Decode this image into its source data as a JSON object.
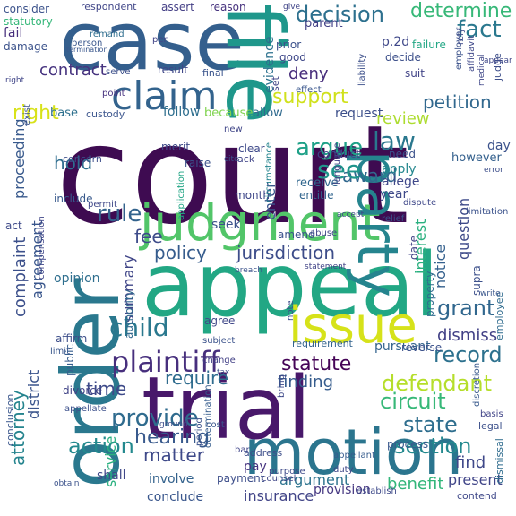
{
  "words": [
    {
      "text": "court",
      "color": "#3e0b51"
    },
    {
      "text": "case",
      "color": "#345f8d"
    },
    {
      "text": "file",
      "color": "#1f978b"
    },
    {
      "text": "appeal",
      "color": "#22a784"
    },
    {
      "text": "order",
      "color": "#2a788e"
    },
    {
      "text": "trial",
      "color": "#48186a"
    },
    {
      "text": "motion",
      "color": "#2b758e"
    },
    {
      "text": "judgment",
      "color": "#52c569"
    },
    {
      "text": "party",
      "color": "#25848e"
    },
    {
      "text": "issue",
      "color": "#d6e21a"
    },
    {
      "text": "claim",
      "color": "#33638d"
    },
    {
      "text": "plaintiff",
      "color": "#472f7d"
    },
    {
      "text": "decision",
      "color": "#2d708e"
    },
    {
      "text": "determine",
      "color": "#37b878"
    },
    {
      "text": "fact",
      "color": "#2a788e"
    },
    {
      "text": "contract",
      "color": "#46337f"
    },
    {
      "text": "right",
      "color": "#d8e219"
    },
    {
      "text": "support",
      "color": "#d0e11c"
    },
    {
      "text": "petition",
      "color": "#31688e"
    },
    {
      "text": "deny",
      "color": "#472d7b"
    },
    {
      "text": "p.2d",
      "color": "#3f4889"
    },
    {
      "text": "evidence",
      "color": "#2c718e"
    },
    {
      "text": "prior",
      "color": "#3b518b"
    },
    {
      "text": "parent",
      "color": "#424086"
    },
    {
      "text": "consider",
      "color": "#3b528b"
    },
    {
      "text": "respondent",
      "color": "#404688"
    },
    {
      "text": "assert",
      "color": "#433e85"
    },
    {
      "text": "reason",
      "color": "#46327e"
    },
    {
      "text": "fail",
      "color": "#472e7c"
    },
    {
      "text": "statutory",
      "color": "#35b779"
    },
    {
      "text": "damage",
      "color": "#3b528b"
    },
    {
      "text": "remand",
      "color": "#2e6d8e"
    },
    {
      "text": "person",
      "color": "#39568c"
    },
    {
      "text": "result",
      "color": "#3f4788"
    },
    {
      "text": "base",
      "color": "#2d708e"
    },
    {
      "text": "custody",
      "color": "#3a548c"
    },
    {
      "text": "follow",
      "color": "#2e6e8e"
    },
    {
      "text": "because",
      "color": "#7fd34e"
    },
    {
      "text": "allow",
      "color": "#306a8e"
    },
    {
      "text": "request",
      "color": "#3c4f8a"
    },
    {
      "text": "review",
      "color": "#addc30"
    },
    {
      "text": "law",
      "color": "#2a788e"
    },
    {
      "text": "argue",
      "color": "#1fa188"
    },
    {
      "text": "enter",
      "color": "#3a548c"
    },
    {
      "text": "award",
      "color": "#31688e"
    },
    {
      "text": "apply",
      "color": "#24878e"
    },
    {
      "text": "allege",
      "color": "#3f4889"
    },
    {
      "text": "hold",
      "color": "#2e6d8e"
    },
    {
      "text": "proceeding",
      "color": "#38598c"
    },
    {
      "text": "see",
      "color": "#1f958b"
    },
    {
      "text": "rule",
      "color": "#33638d"
    },
    {
      "text": "fee",
      "color": "#3e4c8a"
    },
    {
      "text": "policy",
      "color": "#365c8d"
    },
    {
      "text": "jurisdiction",
      "color": "#3d4d8a"
    },
    {
      "text": "complaint",
      "color": "#3c508b"
    },
    {
      "text": "agreement",
      "color": "#39568c"
    },
    {
      "text": "summary",
      "color": "#404688"
    },
    {
      "text": "child",
      "color": "#2a788e"
    },
    {
      "text": "statute",
      "color": "#450457"
    },
    {
      "text": "require",
      "color": "#2f6c8e"
    },
    {
      "text": "finding",
      "color": "#365c8d"
    },
    {
      "text": "time",
      "color": "#3e4a89"
    },
    {
      "text": "defendant",
      "color": "#b5de2b"
    },
    {
      "text": "grant",
      "color": "#31678e"
    },
    {
      "text": "dismiss",
      "color": "#424186"
    },
    {
      "text": "record",
      "color": "#2d718e"
    },
    {
      "text": "interest",
      "color": "#2ab07f"
    },
    {
      "text": "notice",
      "color": "#34608d"
    },
    {
      "text": "circuit",
      "color": "#37b878"
    },
    {
      "text": "state",
      "color": "#2e6e8e"
    },
    {
      "text": "section",
      "color": "#23898e"
    },
    {
      "text": "provide",
      "color": "#2f6b8e"
    },
    {
      "text": "hearing",
      "color": "#38598c"
    },
    {
      "text": "action",
      "color": "#23898e"
    },
    {
      "text": "matter",
      "color": "#3e4989"
    },
    {
      "text": "attorney",
      "color": "#25848e"
    },
    {
      "text": "district",
      "color": "#3a548c"
    },
    {
      "text": "service",
      "color": "#2ab07f"
    },
    {
      "text": "find",
      "color": "#3f4889"
    },
    {
      "text": "present",
      "color": "#404588"
    },
    {
      "text": "argument",
      "color": "#2c738e"
    },
    {
      "text": "insurance",
      "color": "#414487"
    },
    {
      "text": "provision",
      "color": "#453781"
    },
    {
      "text": "benefit",
      "color": "#32b67a"
    },
    {
      "text": "pay",
      "color": "#46337f"
    },
    {
      "text": "payment",
      "color": "#3d4e8a"
    },
    {
      "text": "shall",
      "color": "#3f4788"
    },
    {
      "text": "involve",
      "color": "#33628d"
    },
    {
      "text": "conclude",
      "color": "#39568c"
    },
    {
      "text": "include",
      "color": "#38598c"
    },
    {
      "text": "opinion",
      "color": "#2e6e8e"
    },
    {
      "text": "seek",
      "color": "#3b528b"
    },
    {
      "text": "amend",
      "color": "#3a548c"
    },
    {
      "text": "month",
      "color": "#3f4889"
    },
    {
      "text": "affirm",
      "color": "#3d4e8a"
    },
    {
      "text": "agree",
      "color": "#3f4788"
    },
    {
      "text": "pursuant",
      "color": "#33638d"
    },
    {
      "text": "reverse",
      "color": "#3b518b"
    },
    {
      "text": "year",
      "color": "#3e4989"
    },
    {
      "text": "day",
      "color": "#3b528b"
    },
    {
      "text": "however",
      "color": "#34608d"
    },
    {
      "text": "need",
      "color": "#3b518b"
    },
    {
      "text": "question",
      "color": "#3e4a89"
    },
    {
      "text": "date",
      "color": "#414487"
    },
    {
      "text": "property",
      "color": "#2f6c8e"
    },
    {
      "text": "authority",
      "color": "#31688e"
    },
    {
      "text": "supra",
      "color": "#3c508b"
    },
    {
      "text": "limit",
      "color": "#39568c"
    },
    {
      "text": "change",
      "color": "#424086"
    },
    {
      "text": "public",
      "color": "#365d8d"
    },
    {
      "text": "divorce",
      "color": "#414487"
    },
    {
      "text": "merit",
      "color": "#3e4a89"
    },
    {
      "text": "raise",
      "color": "#3b528b"
    },
    {
      "text": "clear",
      "color": "#3e4989"
    },
    {
      "text": "lack",
      "color": "#404588"
    },
    {
      "text": "receive",
      "color": "#31678e"
    },
    {
      "text": "entitle",
      "color": "#32658e"
    },
    {
      "text": "conduct",
      "color": "#3f4788"
    },
    {
      "text": "good",
      "color": "#3f4889"
    },
    {
      "text": "suit",
      "color": "#414487"
    },
    {
      "text": "decide",
      "color": "#3c4f8a"
    },
    {
      "text": "failure",
      "color": "#22a785"
    },
    {
      "text": "final",
      "color": "#3a548c"
    },
    {
      "text": "new",
      "color": "#404688"
    },
    {
      "text": "point",
      "color": "#46317e"
    },
    {
      "text": "serve",
      "color": "#3c4f8a"
    },
    {
      "text": "per",
      "color": "#414487"
    },
    {
      "text": "exist",
      "color": "#3b528b"
    },
    {
      "text": "concern",
      "color": "#3d4d8a"
    },
    {
      "text": "permit",
      "color": "#3f4788"
    },
    {
      "text": "act",
      "color": "#3e4a89"
    },
    {
      "text": "compensation",
      "color": "#404688"
    },
    {
      "text": "cost",
      "color": "#3a548c"
    },
    {
      "text": "period",
      "color": "#3b528b"
    },
    {
      "text": "address",
      "color": "#3d4e8a"
    },
    {
      "text": "bar",
      "color": "#404588"
    },
    {
      "text": "duty",
      "color": "#3f4788"
    },
    {
      "text": "process",
      "color": "#38588c"
    },
    {
      "text": "appellant",
      "color": "#365c8d"
    },
    {
      "text": "legal",
      "color": "#3c508b"
    },
    {
      "text": "basis",
      "color": "#414487"
    },
    {
      "text": "contend",
      "color": "#3f4889"
    },
    {
      "text": "conclusion",
      "color": "#39568c"
    },
    {
      "text": "employee",
      "color": "#2f6b8e"
    },
    {
      "text": "discretion",
      "color": "#38598c"
    },
    {
      "text": "relief",
      "color": "#3b528b"
    },
    {
      "text": "judge",
      "color": "#3d4e8a"
    },
    {
      "text": "rely",
      "color": "#3f4788"
    },
    {
      "text": "application",
      "color": "#21a585"
    },
    {
      "text": "circumstance",
      "color": "#25858e"
    },
    {
      "text": "limitation",
      "color": "#3b528b"
    },
    {
      "text": "determination",
      "color": "#365d8d"
    },
    {
      "text": "requirement",
      "color": "#33638d"
    },
    {
      "text": "appellate",
      "color": "#3c508b"
    },
    {
      "text": "establish",
      "color": "#3e4a89"
    },
    {
      "text": "counsel",
      "color": "#404688"
    },
    {
      "text": "subject",
      "color": "#3b528b"
    },
    {
      "text": "abuse",
      "color": "#3f4788"
    },
    {
      "text": "dispute",
      "color": "#3f4889"
    },
    {
      "text": "effect",
      "color": "#39568c"
    },
    {
      "text": "set",
      "color": "#414487"
    },
    {
      "text": "note",
      "color": "#3d4d8a"
    },
    {
      "text": "bring",
      "color": "#3e4989"
    },
    {
      "text": "employer",
      "color": "#3b528b"
    },
    {
      "text": "affidavit",
      "color": "#3f4889"
    },
    {
      "text": "liability",
      "color": "#3c4f8a"
    },
    {
      "text": "termination",
      "color": "#39568c"
    },
    {
      "text": "purpose",
      "color": "#3e4a89"
    },
    {
      "text": "dismissal",
      "color": "#2f6c8e"
    },
    {
      "text": "language",
      "color": "#414487"
    },
    {
      "text": "medical",
      "color": "#3f4788"
    },
    {
      "text": "breach",
      "color": "#3b528b"
    },
    {
      "text": "cite",
      "color": "#3c508b"
    },
    {
      "text": "error",
      "color": "#3d4e8a"
    },
    {
      "text": "give",
      "color": "#404588"
    },
    {
      "text": "obtain",
      "color": "#3b528b"
    },
    {
      "text": "appear",
      "color": "#3f4788"
    },
    {
      "text": "statement",
      "color": "#414487"
    },
    {
      "text": "accept",
      "color": "#3e4a89"
    },
    {
      "text": "tax",
      "color": "#3c4f8a"
    },
    {
      "text": "ground",
      "color": "#3d4d8a"
    },
    {
      "text": "right",
      "color": "#404688"
    },
    {
      "text": "write",
      "color": "#39568c"
    }
  ]
}
